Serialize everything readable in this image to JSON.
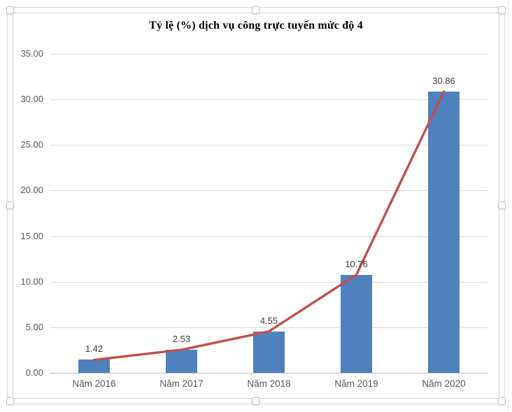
{
  "chart_data": {
    "type": "bar",
    "title": "Tỷ lệ (%) dịch vụ công trực tuyến mức độ 4",
    "categories": [
      "Năm 2016",
      "Năm 2017",
      "Năm 2018",
      "Năm 2019",
      "Năm 2020"
    ],
    "series": [
      {
        "name": "bars",
        "type": "bar",
        "values": [
          1.42,
          2.53,
          4.55,
          10.76,
          30.86
        ],
        "color": "#4e81bd"
      },
      {
        "name": "line",
        "type": "line",
        "values": [
          1.42,
          2.53,
          4.55,
          10.76,
          30.86
        ],
        "color": "#c2504e"
      }
    ],
    "data_labels": [
      "1.42",
      "2.53",
      "4.55",
      "10.76",
      "30.86"
    ],
    "yticks": [
      "0.00",
      "5.00",
      "10.00",
      "15.00",
      "20.00",
      "25.00",
      "30.00",
      "35.00"
    ],
    "ylim": [
      0,
      35
    ],
    "grid": true,
    "legend": false
  },
  "colors": {
    "bar": "#4e81bd",
    "line": "#c2504e",
    "gridline": "#d9d9d9",
    "axis_line": "#bfbfbf",
    "tick_label": "#595959",
    "data_label": "#404040",
    "title": "#000000",
    "frame_border": "#d4d4d4",
    "background": "#ffffff"
  }
}
